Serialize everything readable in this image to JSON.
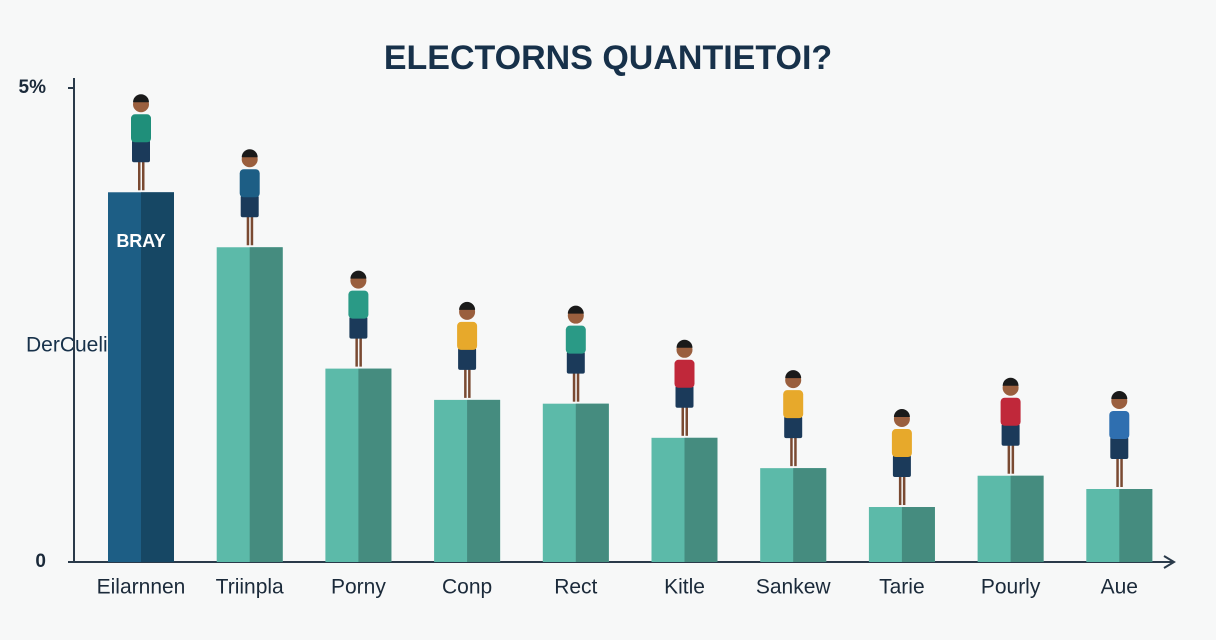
{
  "chart_data": {
    "type": "bar",
    "title": "ELECTORNS QUANTIETOI?",
    "y_label": "DerCuelin",
    "categories": [
      "Eilarnnen",
      "Triinpla",
      "Porny",
      "Conp",
      "Rect",
      "Kitle",
      "Sankew",
      "Tarie",
      "Pourly",
      "Aue"
    ],
    "values": [
      3.9,
      3.32,
      2.04,
      1.71,
      1.67,
      1.31,
      0.99,
      0.58,
      0.91,
      0.77
    ],
    "colors": [
      "#1d5e85",
      "#5cbaa9",
      "#5cbaa9",
      "#5cbaa9",
      "#5cbaa9",
      "#5cbaa9",
      "#5cbaa9",
      "#5cbaa9",
      "#5cbaa9",
      "#5cbaa9"
    ],
    "bar_label": "BRAY",
    "ylim": [
      0,
      5
    ],
    "yticks": [
      0,
      {
        "value": 5,
        "label": "5%"
      }
    ],
    "grid": false
  }
}
